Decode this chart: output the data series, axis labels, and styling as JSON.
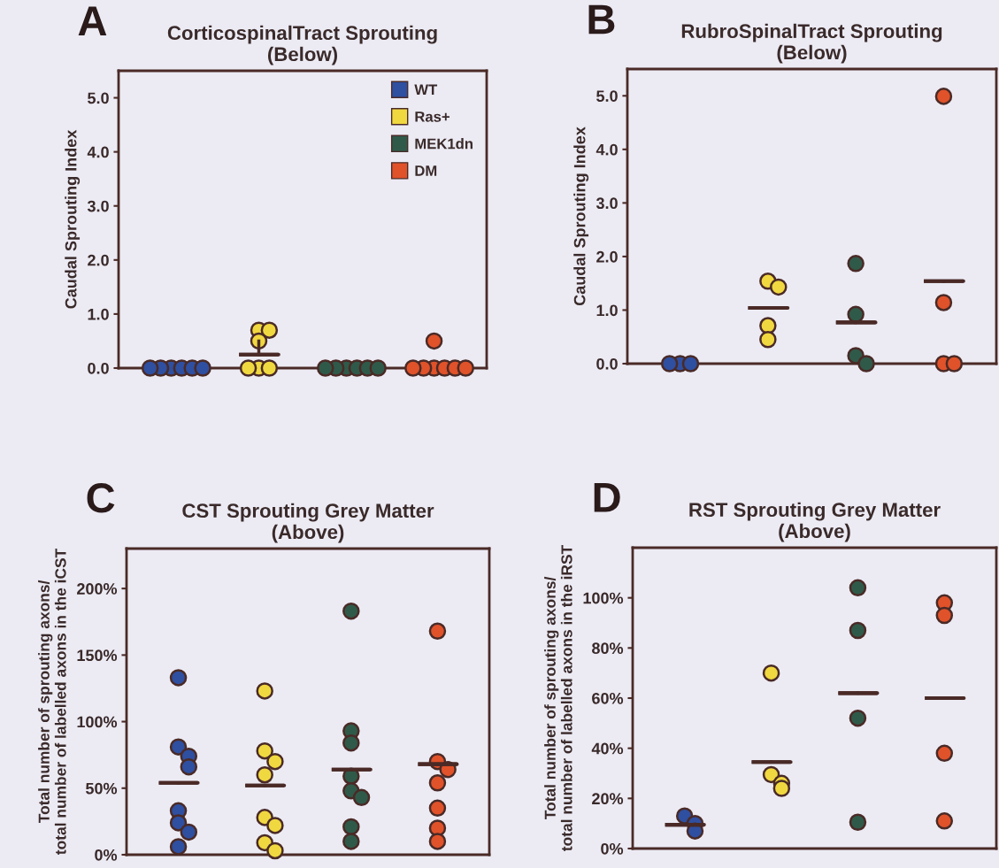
{
  "chart_data": [
    {
      "type": "scatter",
      "title": "CorticospinalTract Sprouting\n(Below)",
      "ylabel": "Caudal Sprouting Index",
      "annotations": [
        "A"
      ],
      "categories": [
        null,
        null,
        null,
        null
      ],
      "ylim": [
        0,
        5.5
      ],
      "yticks": [
        {
          "value": 0,
          "label": "0.0"
        },
        {
          "value": 1,
          "label": "1.0"
        },
        {
          "value": 2,
          "label": "2.0"
        },
        {
          "value": 3,
          "label": "3.0"
        },
        {
          "value": 4,
          "label": "4.0"
        },
        {
          "value": 5,
          "label": "5.0"
        }
      ],
      "tick_labels": "y",
      "grid": false,
      "legend": "top right",
      "marker": "circle",
      "series": [
        {
          "colors": [
            "#2f4fa0",
            "#f0d840",
            "#2f5a4a",
            "#e0522a"
          ],
          "values": [
            0,
            0.7,
            0,
            0.5
          ]
        },
        {
          "colors": [
            "#2f4fa0",
            "#f0d840",
            "#2f5a4a",
            "#e0522a"
          ],
          "values": [
            0,
            0.7,
            0,
            0
          ]
        },
        {
          "colors": [
            "#2f4fa0",
            "#f0d840",
            "#2f5a4a",
            "#e0522a"
          ],
          "values": [
            0,
            0.5,
            0,
            0
          ]
        },
        {
          "colors": [
            "#2f4fa0",
            "#f0d840",
            "#2f5a4a",
            "#e0522a"
          ],
          "values": [
            0,
            0,
            0,
            0
          ]
        },
        {
          "colors": [
            "#2f4fa0",
            "#f0d840",
            "#2f5a4a",
            "#e0522a"
          ],
          "values": [
            0,
            0,
            0,
            0
          ]
        },
        {
          "colors": [
            "#2f4fa0",
            "#f0d840",
            "#2f5a4a",
            "#e0522a"
          ],
          "values": [
            0,
            0,
            0,
            0
          ]
        },
        {
          "colors": [
            "#2f4fa0",
            "#f0d840",
            "#2f5a4a",
            "#e0522a"
          ],
          "values": [
            null,
            null,
            null,
            0
          ]
        },
        {
          "type": "box",
          "color": "#4a2a26",
          "boxes": [
            null,
            {
              "low": 0.25,
              "q1": 0.25,
              "median": 0.25,
              "q3": 0.25,
              "high": 0.5
            },
            null,
            null
          ]
        },
        {
          "name": "WT",
          "color": "#2f4fa0",
          "values": [
            null,
            null,
            null,
            null
          ]
        },
        {
          "name": "Ras+",
          "color": "#f0d840",
          "values": [
            null,
            null,
            null,
            null
          ]
        },
        {
          "name": "MEK1dn",
          "color": "#2f5a4a",
          "values": [
            null,
            null,
            null,
            null
          ]
        },
        {
          "name": "DM",
          "color": "#e0522a",
          "values": [
            null,
            null,
            null,
            null
          ]
        }
      ]
    },
    {
      "type": "scatter",
      "title": "RubroSpinalTract Sprouting\n(Below)",
      "ylabel": "Caudal Sprouting Index",
      "annotations": [
        "B"
      ],
      "categories": [
        null,
        null,
        null,
        null
      ],
      "ylim": [
        0,
        5.5
      ],
      "yticks": [
        {
          "value": 0,
          "label": "0.0"
        },
        {
          "value": 1,
          "label": "1.0"
        },
        {
          "value": 2,
          "label": "2.0"
        },
        {
          "value": 3,
          "label": "3.0"
        },
        {
          "value": 4,
          "label": "4.0"
        },
        {
          "value": 5,
          "label": "5.0"
        }
      ],
      "tick_labels": "y",
      "grid": false,
      "marker": "circle",
      "series": [
        {
          "colors": [
            "#2f4fa0",
            "#f0d840",
            "#2f5a4a",
            "#e0522a"
          ],
          "values": [
            0,
            1.54,
            1.87,
            4.99
          ]
        },
        {
          "colors": [
            "#2f4fa0",
            "#f0d840",
            "#2f5a4a",
            "#e0522a"
          ],
          "values": [
            0,
            1.43,
            0.92,
            1.14
          ]
        },
        {
          "colors": [
            "#2f4fa0",
            "#f0d840",
            "#2f5a4a",
            "#e0522a"
          ],
          "values": [
            0,
            0.71,
            0.15,
            0
          ]
        },
        {
          "colors": [
            "#2f4fa0",
            "#f0d840",
            "#2f5a4a",
            "#e0522a"
          ],
          "values": [
            null,
            0.45,
            0,
            0
          ]
        },
        {
          "type": "box",
          "color": "#4a2a26",
          "boxes": [
            null,
            {
              "low": 1.04,
              "q1": 1.04,
              "median": 1.04,
              "q3": 1.04,
              "high": 1.04
            },
            {
              "low": 0.77,
              "q1": 0.77,
              "median": 0.77,
              "q3": 0.77,
              "high": 0.77
            },
            {
              "low": 1.54,
              "q1": 1.54,
              "median": 1.54,
              "q3": 1.54,
              "high": 1.54
            }
          ]
        }
      ]
    },
    {
      "type": "scatter",
      "title": "CST Sprouting Grey Matter\n(Above)",
      "ylabel": "Total number of sprouting axons/\ntotal number of labelled axons in the iCST",
      "annotations": [
        "C"
      ],
      "categories": [
        null,
        null,
        null,
        null
      ],
      "ylim": [
        0,
        230
      ],
      "yticks": [
        {
          "value": 0,
          "label": "0%"
        },
        {
          "value": 50,
          "label": "50%"
        },
        {
          "value": 100,
          "label": "100%"
        },
        {
          "value": 150,
          "label": "150%"
        },
        {
          "value": 200,
          "label": "200%"
        }
      ],
      "tick_labels": "y",
      "grid": false,
      "marker": "circle",
      "series": [
        {
          "colors": [
            "#2f4fa0",
            "#f0d840",
            "#2f5a4a",
            "#e0522a"
          ],
          "values": [
            133,
            123,
            183,
            168
          ]
        },
        {
          "colors": [
            "#2f4fa0",
            "#f0d840",
            "#2f5a4a",
            "#e0522a"
          ],
          "values": [
            81,
            78,
            93,
            70
          ]
        },
        {
          "colors": [
            "#2f4fa0",
            "#f0d840",
            "#2f5a4a",
            "#e0522a"
          ],
          "values": [
            74,
            70,
            84,
            64
          ]
        },
        {
          "colors": [
            "#2f4fa0",
            "#f0d840",
            "#2f5a4a",
            "#e0522a"
          ],
          "values": [
            66,
            60,
            59,
            54
          ]
        },
        {
          "colors": [
            "#2f4fa0",
            "#f0d840",
            "#2f5a4a",
            "#e0522a"
          ],
          "values": [
            33,
            28,
            48,
            35
          ]
        },
        {
          "colors": [
            "#2f4fa0",
            "#f0d840",
            "#2f5a4a",
            "#e0522a"
          ],
          "values": [
            24,
            22,
            43,
            20
          ]
        },
        {
          "colors": [
            "#2f4fa0",
            "#f0d840",
            "#2f5a4a",
            "#e0522a"
          ],
          "values": [
            17,
            9,
            21,
            10
          ]
        },
        {
          "colors": [
            "#2f4fa0",
            "#f0d840",
            "#2f5a4a",
            "#e0522a"
          ],
          "values": [
            6,
            3,
            10,
            null
          ]
        },
        {
          "type": "box",
          "color": "#4a2a26",
          "boxes": [
            {
              "low": 54,
              "q1": 54,
              "median": 54,
              "q3": 54,
              "high": 54
            },
            {
              "low": 52,
              "q1": 52,
              "median": 52,
              "q3": 52,
              "high": 52
            },
            {
              "low": 64,
              "q1": 64,
              "median": 64,
              "q3": 64,
              "high": 64
            },
            {
              "low": 68,
              "q1": 68,
              "median": 68,
              "q3": 68,
              "high": 68
            }
          ]
        }
      ]
    },
    {
      "type": "scatter",
      "title": "RST Sprouting Grey Matter\n(Above)",
      "ylabel": "Total number of sprouting axons/\ntotal number of labelled axons in the iRST",
      "annotations": [
        "D"
      ],
      "categories": [
        null,
        null,
        null,
        null
      ],
      "ylim": [
        0,
        120
      ],
      "yticks": [
        {
          "value": 0,
          "label": "0%"
        },
        {
          "value": 20,
          "label": "20%"
        },
        {
          "value": 40,
          "label": "40%"
        },
        {
          "value": 60,
          "label": "60%"
        },
        {
          "value": 80,
          "label": "80%"
        },
        {
          "value": 100,
          "label": "100%"
        }
      ],
      "tick_labels": "y",
      "grid": false,
      "marker": "circle",
      "series": [
        {
          "colors": [
            "#2f4fa0",
            "#f0d840",
            "#2f5a4a",
            "#e0522a"
          ],
          "values": [
            13,
            70,
            104,
            98
          ]
        },
        {
          "colors": [
            "#2f4fa0",
            "#f0d840",
            "#2f5a4a",
            "#e0522a"
          ],
          "values": [
            10,
            29.5,
            87,
            93
          ]
        },
        {
          "colors": [
            "#2f4fa0",
            "#f0d840",
            "#2f5a4a",
            "#e0522a"
          ],
          "values": [
            7,
            26,
            52,
            38
          ]
        },
        {
          "colors": [
            "#2f4fa0",
            "#f0d840",
            "#2f5a4a",
            "#e0522a"
          ],
          "values": [
            null,
            24,
            10.5,
            11
          ]
        },
        {
          "type": "box",
          "color": "#4a2a26",
          "boxes": [
            {
              "low": 9.5,
              "q1": 9.5,
              "median": 9.5,
              "q3": 9.5,
              "high": 9.5
            },
            {
              "low": 34.5,
              "q1": 34.5,
              "median": 34.5,
              "q3": 34.5,
              "high": 34.5
            },
            {
              "low": 62,
              "q1": 62,
              "median": 62,
              "q3": 62,
              "high": 62
            },
            {
              "low": 60,
              "q1": 60,
              "median": 60,
              "q3": 60,
              "high": 60
            }
          ]
        }
      ]
    }
  ]
}
